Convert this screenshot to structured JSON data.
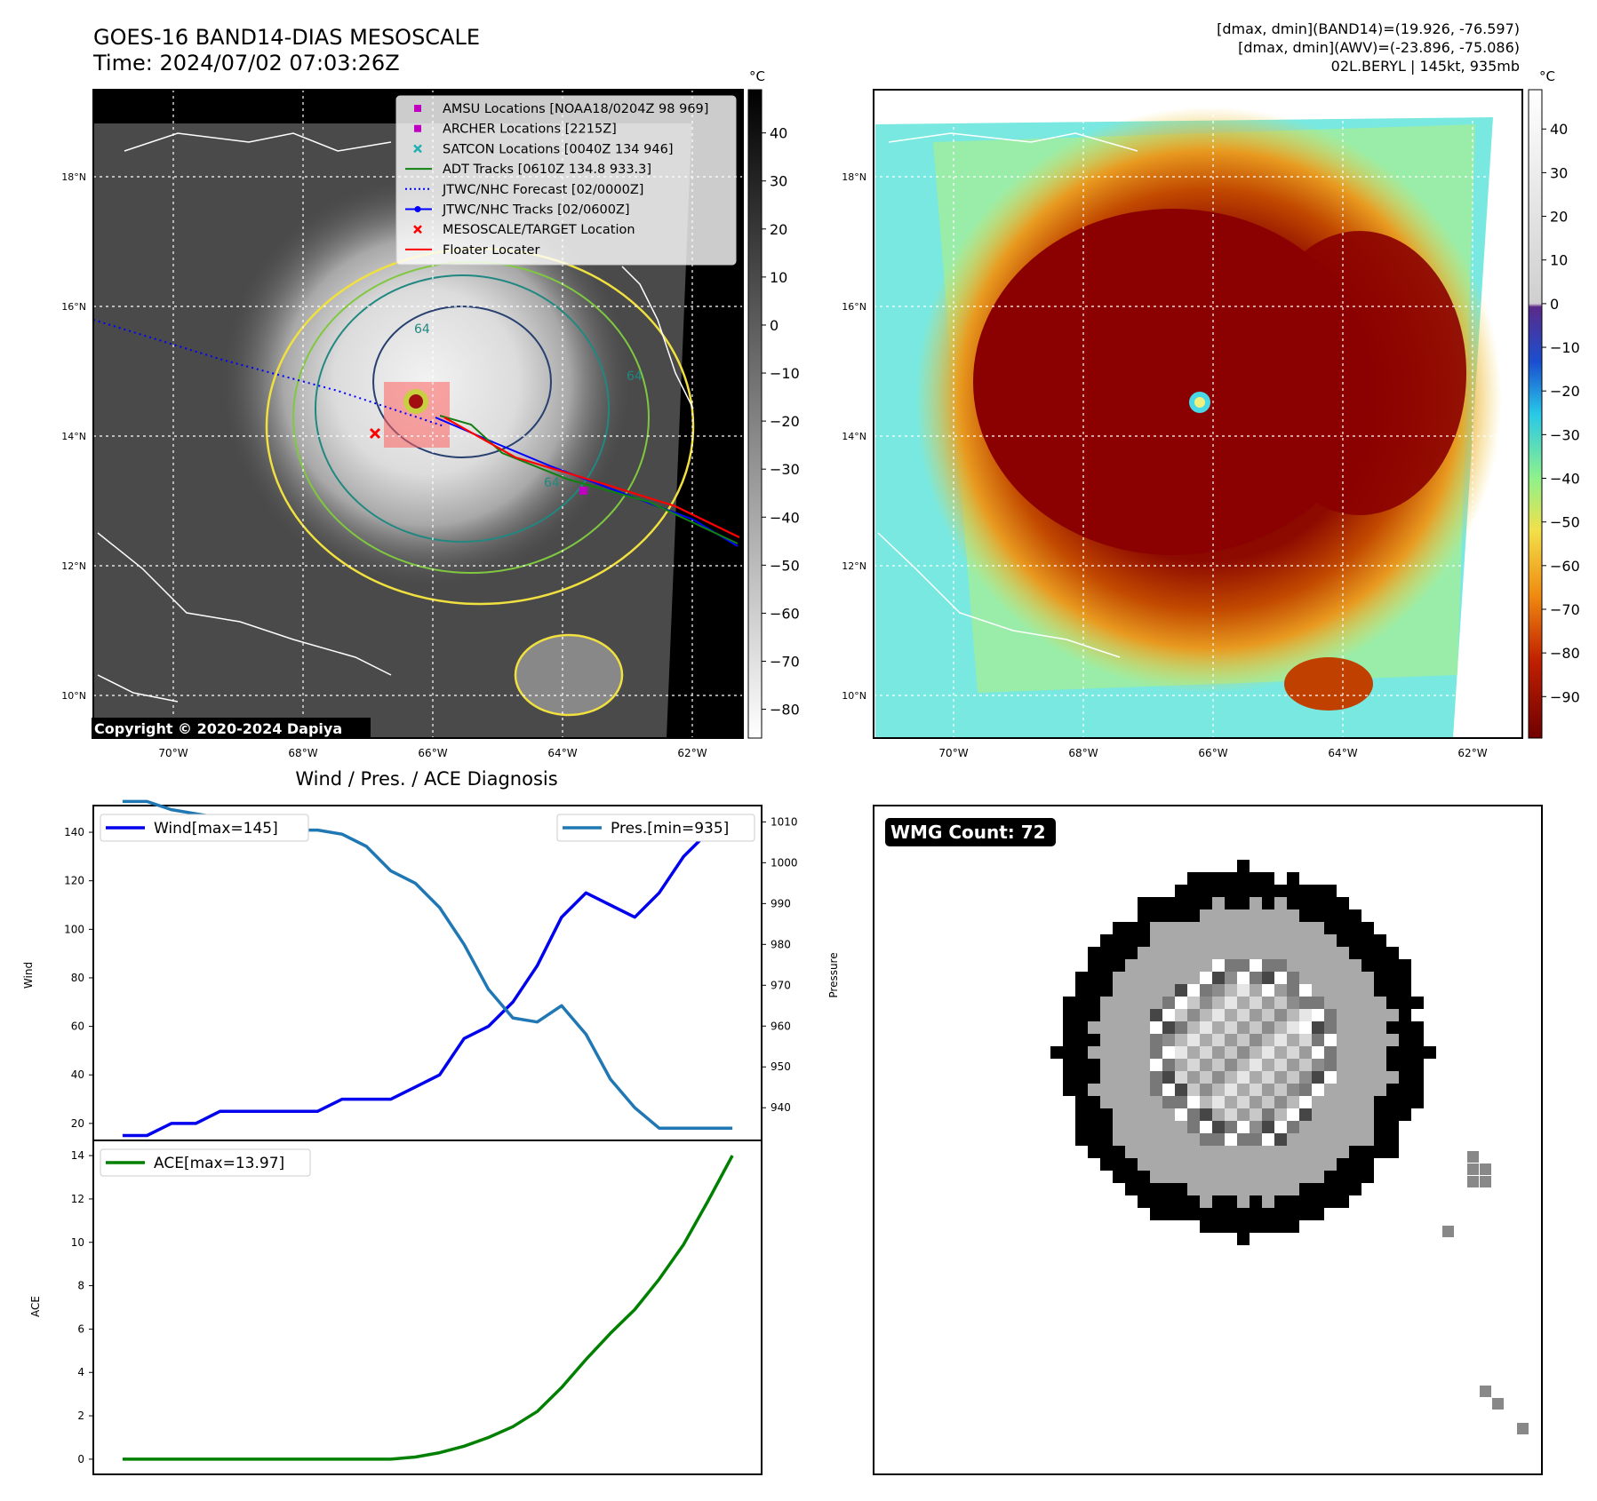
{
  "header": {
    "title_line1": "GOES-16 BAND14-DIAS MESOSCALE",
    "title_line2": "Time: 2024/07/02 07:03:26Z",
    "stats_line1": "[dmax, dmin](BAND14)=(19.926, -76.597)",
    "stats_line2": "[dmax, dmin](AWV)=(-23.896, -75.086)",
    "stats_line3": "02L.BERYL | 145kt, 935mb"
  },
  "map": {
    "lat_labels": [
      "18°N",
      "16°N",
      "14°N",
      "12°N",
      "10°N"
    ],
    "lon_labels": [
      "70°W",
      "68°W",
      "66°W",
      "64°W",
      "62°W"
    ],
    "copyright": "Copyright © 2020-2024 Dapiya",
    "contour_labels": [
      "64",
      "64",
      "64"
    ],
    "legend": [
      {
        "label": "AMSU Locations [NOAA18/0204Z 98 969]",
        "marker": "square",
        "color": "#c000c0"
      },
      {
        "label": "ARCHER Locations [2215Z]",
        "marker": "square",
        "color": "#c000c0"
      },
      {
        "label": "SATCON Locations [0040Z 134 946]",
        "marker": "x",
        "color": "#20b0b0"
      },
      {
        "label": "ADT Tracks [0610Z 134.8 933.3]",
        "marker": "line",
        "color": "#108010"
      },
      {
        "label": "JTWC/NHC Forecast [02/0000Z]",
        "marker": "dotted",
        "color": "#0000ff"
      },
      {
        "label": "JTWC/NHC Tracks [02/0600Z]",
        "marker": "line-dot",
        "color": "#0000ff"
      },
      {
        "label": "MESOSCALE/TARGET Location",
        "marker": "x",
        "color": "#ff0000"
      },
      {
        "label": "Floater Locater",
        "marker": "line",
        "color": "#ff0000"
      }
    ],
    "colorbar_unit": "°C",
    "colorbar_gray_ticks": [
      "40",
      "30",
      "20",
      "10",
      "0",
      "−10",
      "−20",
      "−30",
      "−40",
      "−50",
      "−60",
      "−70",
      "−80"
    ],
    "colorbar_color_ticks": [
      "40",
      "30",
      "20",
      "10",
      "0",
      "−10",
      "−20",
      "−30",
      "−40",
      "−50",
      "−60",
      "−70",
      "−80",
      "−90"
    ]
  },
  "chart_data": [
    {
      "type": "line",
      "title": "Wind / Pres. / ACE Diagnosis",
      "x": [
        0,
        1,
        2,
        3,
        4,
        5,
        6,
        7,
        8,
        9,
        10,
        11,
        12,
        13,
        14,
        15,
        16,
        17,
        18,
        19,
        20,
        21,
        22,
        23,
        24,
        25
      ],
      "ylabel": "Wind",
      "ylabel_right": "Pressure",
      "ylim": [
        13,
        151
      ],
      "ylim_right": [
        932,
        1014
      ],
      "yticks": [
        20,
        40,
        60,
        80,
        100,
        120,
        140
      ],
      "yticks_right": [
        940,
        950,
        960,
        970,
        980,
        990,
        1000,
        1010
      ],
      "series": [
        {
          "name": "Wind[max=145]",
          "axis": "left",
          "color": "#0000ee",
          "values": [
            15,
            15,
            20,
            20,
            25,
            25,
            25,
            25,
            25,
            30,
            30,
            30,
            35,
            40,
            55,
            60,
            70,
            85,
            105,
            115,
            110,
            105,
            115,
            130,
            140,
            145
          ]
        },
        {
          "name": "Pres.[min=935]",
          "axis": "right",
          "color": "#1f77b4",
          "values": [
            1015,
            1015,
            1013,
            1012,
            1011,
            1009,
            1009,
            1008,
            1008,
            1007,
            1004,
            998,
            995,
            989,
            980,
            969,
            962,
            961,
            965,
            958,
            947,
            940,
            935,
            935,
            935,
            935
          ]
        }
      ]
    },
    {
      "type": "line",
      "title": "",
      "x": [
        0,
        1,
        2,
        3,
        4,
        5,
        6,
        7,
        8,
        9,
        10,
        11,
        12,
        13,
        14,
        15,
        16,
        17,
        18,
        19,
        20,
        21,
        22,
        23,
        24,
        25
      ],
      "ylabel": "ACE",
      "ylim": [
        -0.7,
        14.7
      ],
      "yticks": [
        0,
        2,
        4,
        6,
        8,
        10,
        12,
        14
      ],
      "series": [
        {
          "name": "ACE[max=13.97]",
          "color": "#008000",
          "values": [
            0,
            0,
            0,
            0,
            0,
            0,
            0,
            0,
            0,
            0,
            0,
            0,
            0.1,
            0.3,
            0.6,
            1.0,
            1.5,
            2.2,
            3.3,
            4.6,
            5.8,
            6.9,
            8.3,
            9.9,
            11.9,
            14.0
          ]
        }
      ]
    }
  ],
  "wmg": {
    "label": "WMG Count: 72"
  }
}
